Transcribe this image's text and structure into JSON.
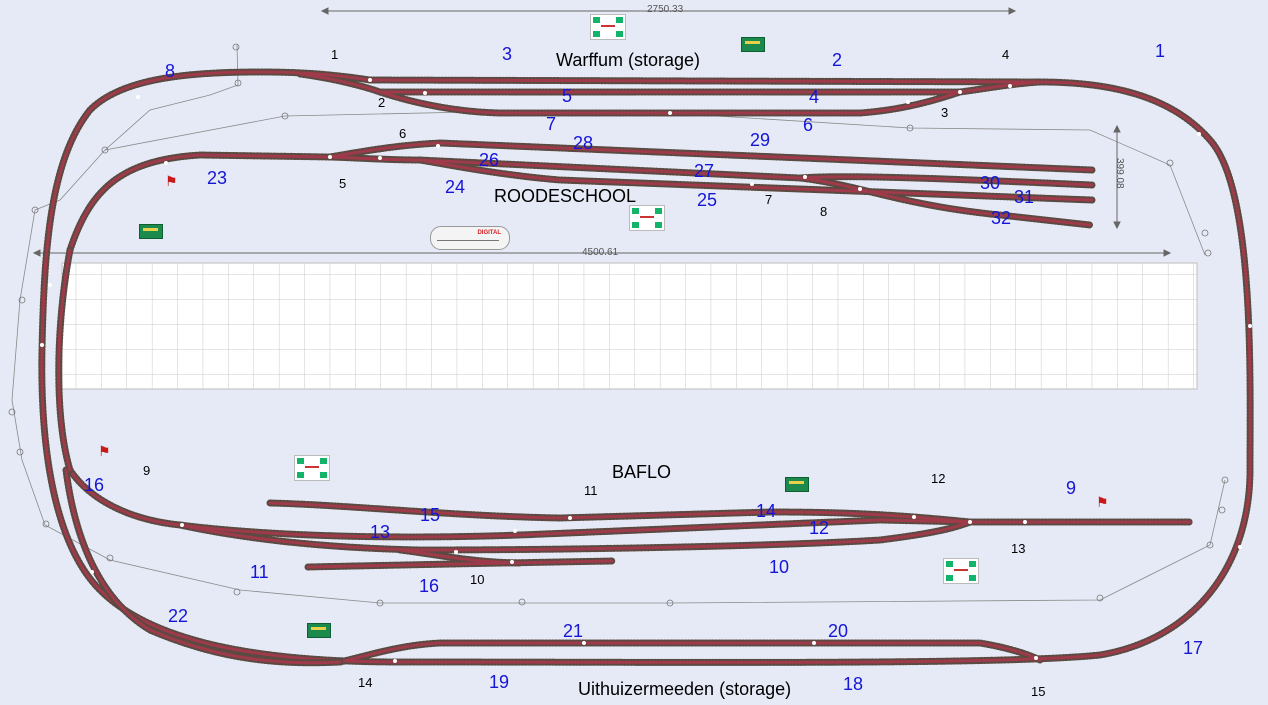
{
  "dimensions": {
    "top_width": "2750.33",
    "main_width": "4500.61",
    "right_height": "399.08"
  },
  "stations": {
    "warffum": "Warffum (storage)",
    "roodeschool": "ROODESCHOOL",
    "baflo": "BAFLO",
    "uithuizermeeden": "Uithuizermeeden (storage)"
  },
  "blue_numbers": [
    "1",
    "2",
    "3",
    "4",
    "5",
    "6",
    "7",
    "8",
    "9",
    "10",
    "11",
    "12",
    "13",
    "14",
    "15",
    "16",
    "16",
    "17",
    "18",
    "19",
    "20",
    "21",
    "22",
    "23",
    "24",
    "25",
    "26",
    "27",
    "28",
    "29",
    "30",
    "31",
    "32"
  ],
  "black_numbers": [
    "1",
    "2",
    "3",
    "4",
    "5",
    "6",
    "7",
    "8",
    "9",
    "10",
    "11",
    "12",
    "13",
    "14",
    "15"
  ],
  "digital_label": "DIGITAL",
  "colors": {
    "background": "#e6eaf6",
    "rail": "#9e3a4a",
    "tie": "#5a4a42",
    "label_blue": "#1515d8"
  }
}
